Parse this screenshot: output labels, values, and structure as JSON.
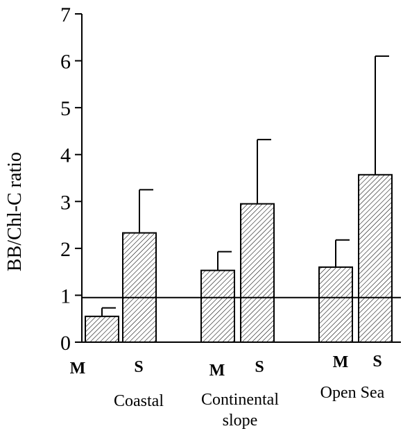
{
  "chart_data": {
    "type": "bar",
    "title": "",
    "xlabel": "",
    "ylabel": "BB/Chl-C ratio",
    "ylim": [
      0,
      7
    ],
    "yticks": [
      0,
      1,
      2,
      3,
      4,
      5,
      6,
      7
    ],
    "reference_line": 0.95,
    "grid": false,
    "bar_fill": "diagonal-hatch",
    "groups": [
      {
        "label_lines": [
          "Coastal"
        ],
        "bars": [
          {
            "label": "M",
            "value": 0.55,
            "error": 0.18
          },
          {
            "label": "S",
            "value": 2.33,
            "error": 0.92
          }
        ]
      },
      {
        "label_lines": [
          "Continental",
          "slope"
        ],
        "bars": [
          {
            "label": "M",
            "value": 1.53,
            "error": 0.4
          },
          {
            "label": "S",
            "value": 2.95,
            "error": 1.37
          }
        ]
      },
      {
        "label_lines": [
          "Open Sea"
        ],
        "bars": [
          {
            "label": "M",
            "value": 1.6,
            "error": 0.58
          },
          {
            "label": "S",
            "value": 3.57,
            "error": 2.53
          }
        ]
      }
    ]
  }
}
